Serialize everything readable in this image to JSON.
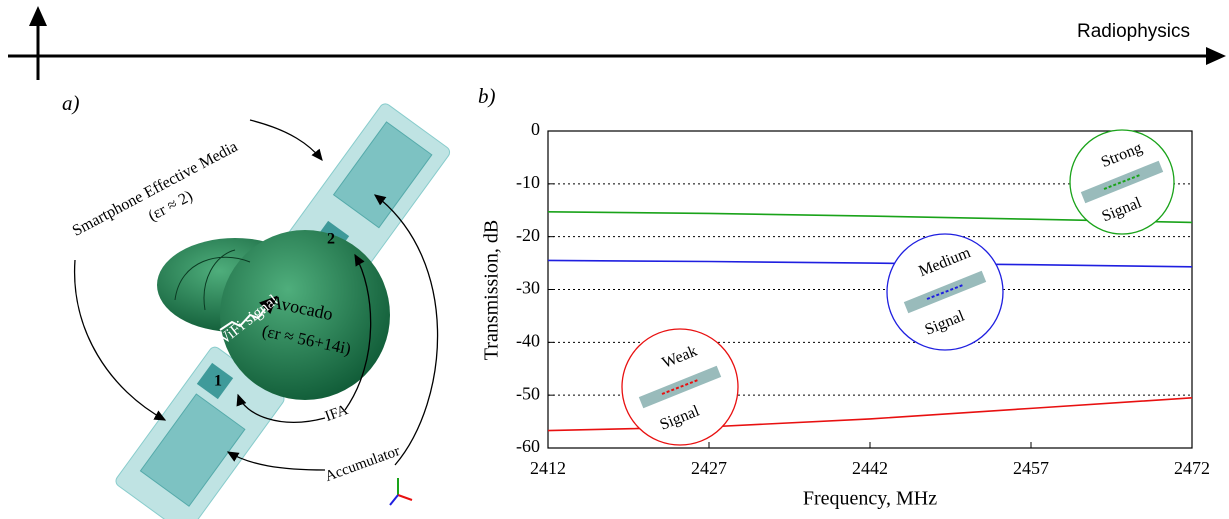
{
  "header": {
    "section": "Radiophysics"
  },
  "diagram": {
    "panel": "a)",
    "media": "Smartphone Effective Media",
    "media_eps": "(εr ≈ 2)",
    "signal": "WiFi signal",
    "object": "Avocado",
    "object_eps": "(εr ≈ 56+14i)",
    "port1": "1",
    "port2": "2",
    "ifa": "IFA",
    "accumulator": "Accumulator"
  },
  "chart_data": {
    "type": "line",
    "panel": "b)",
    "x_label": "Frequency, MHz",
    "y_label": "Transmission, dB",
    "x": [
      2412,
      2427,
      2442,
      2457,
      2472
    ],
    "series": [
      {
        "color": "#1aa31a",
        "values": [
          -15.3,
          -15.6,
          -16.1,
          -16.7,
          -17.3
        ]
      },
      {
        "color": "#1f1fe0",
        "values": [
          -24.5,
          -24.7,
          -25.0,
          -25.3,
          -25.7
        ]
      },
      {
        "color": "#e81010",
        "values": [
          -56.7,
          -56.0,
          -54.5,
          -52.5,
          -50.5
        ]
      }
    ],
    "xlim": [
      2412,
      2472
    ],
    "xticks": [
      2412,
      2427,
      2442,
      2457,
      2472
    ],
    "ylim": [
      -60,
      0
    ],
    "yticks": [
      0,
      -10,
      -20,
      -30,
      -40,
      -50,
      -60
    ],
    "grid": true,
    "annotations": [
      {
        "top": "Strong",
        "bottom": "Signal",
        "color": "#1aa31a"
      },
      {
        "top": "Medium",
        "bottom": "Signal",
        "color": "#1f1fe0"
      },
      {
        "top": "Weak",
        "bottom": "Signal",
        "color": "#e81010"
      }
    ]
  }
}
